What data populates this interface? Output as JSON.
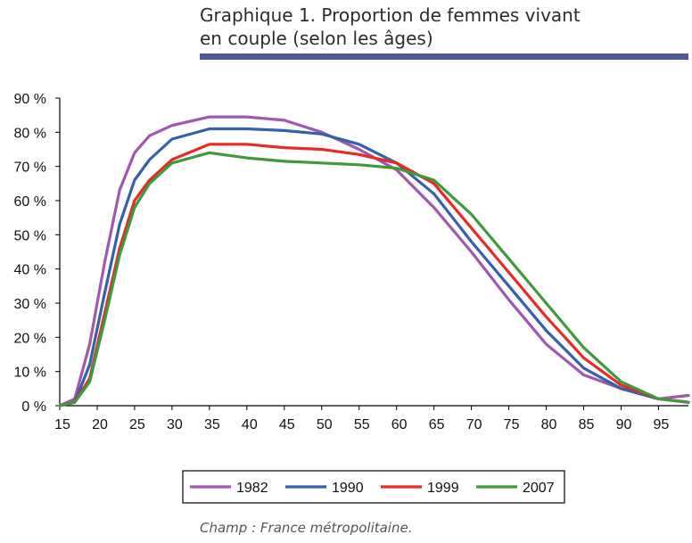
{
  "title_line1": "Graphique 1. Proportion de femmes vivant",
  "title_line2": "en couple (selon les âges)",
  "caption": "Champ : France métropolitaine.",
  "colors": {
    "title_rule": "#4d5a96",
    "1982": "#a057b0",
    "1990": "#3560ac",
    "1999": "#e82a25",
    "2007": "#3e9a3a"
  },
  "chart_data": {
    "type": "line",
    "xlim": [
      15,
      99
    ],
    "ylim": [
      0,
      90
    ],
    "x_ticks": [
      15,
      20,
      25,
      30,
      35,
      40,
      45,
      50,
      55,
      60,
      65,
      70,
      75,
      80,
      85,
      90,
      95
    ],
    "y_ticks": [
      {
        "value": 0,
        "label": "0 %"
      },
      {
        "value": 10,
        "label": "10 %"
      },
      {
        "value": 20,
        "label": "20 %"
      },
      {
        "value": 30,
        "label": "30 %"
      },
      {
        "value": 40,
        "label": "40 %"
      },
      {
        "value": 50,
        "label": "50 %"
      },
      {
        "value": 60,
        "label": "60 %"
      },
      {
        "value": 70,
        "label": "70 %"
      },
      {
        "value": 80,
        "label": "80 %"
      },
      {
        "value": 90,
        "label": "90 %"
      }
    ],
    "grid": false,
    "legend_position": "bottom",
    "x": [
      15,
      17,
      19,
      21,
      23,
      25,
      27,
      30,
      35,
      40,
      45,
      50,
      55,
      60,
      65,
      70,
      75,
      80,
      85,
      90,
      95,
      99
    ],
    "series": [
      {
        "name": "1982",
        "color_key": "1982",
        "values": [
          0,
          2,
          18,
          42,
          63,
          74,
          79,
          82,
          84.5,
          84.5,
          83.5,
          80,
          75,
          69,
          58,
          45,
          31,
          18,
          9,
          5,
          2,
          3
        ]
      },
      {
        "name": "1990",
        "color_key": "1990",
        "values": [
          0,
          1,
          12,
          33,
          53,
          66,
          72,
          78,
          81,
          81,
          80.5,
          79.5,
          76.5,
          71,
          62,
          48,
          35,
          22,
          11,
          5,
          2,
          1
        ]
      },
      {
        "name": "1999",
        "color_key": "1999",
        "values": [
          0,
          1,
          8,
          27,
          46,
          60,
          66,
          72,
          76.5,
          76.5,
          75.5,
          75,
          73.5,
          71,
          65,
          52,
          39,
          26,
          14,
          6,
          2,
          1
        ]
      },
      {
        "name": "2007",
        "color_key": "2007",
        "values": [
          0,
          1,
          7,
          25,
          44,
          58,
          65,
          71,
          74,
          72.5,
          71.5,
          71,
          70.5,
          69.5,
          66,
          56,
          43,
          30,
          17,
          7,
          2,
          1
        ]
      }
    ]
  }
}
